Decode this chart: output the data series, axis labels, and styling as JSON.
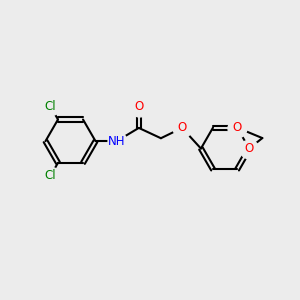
{
  "background_color": "#ececec",
  "bond_color": "#000000",
  "line_width": 1.5,
  "atom_colors": {
    "Cl": "#008000",
    "N": "#0000ff",
    "O": "#ff0000",
    "C": "#000000"
  },
  "font_size_atom": 8.5,
  "fig_bg": "#ececec"
}
